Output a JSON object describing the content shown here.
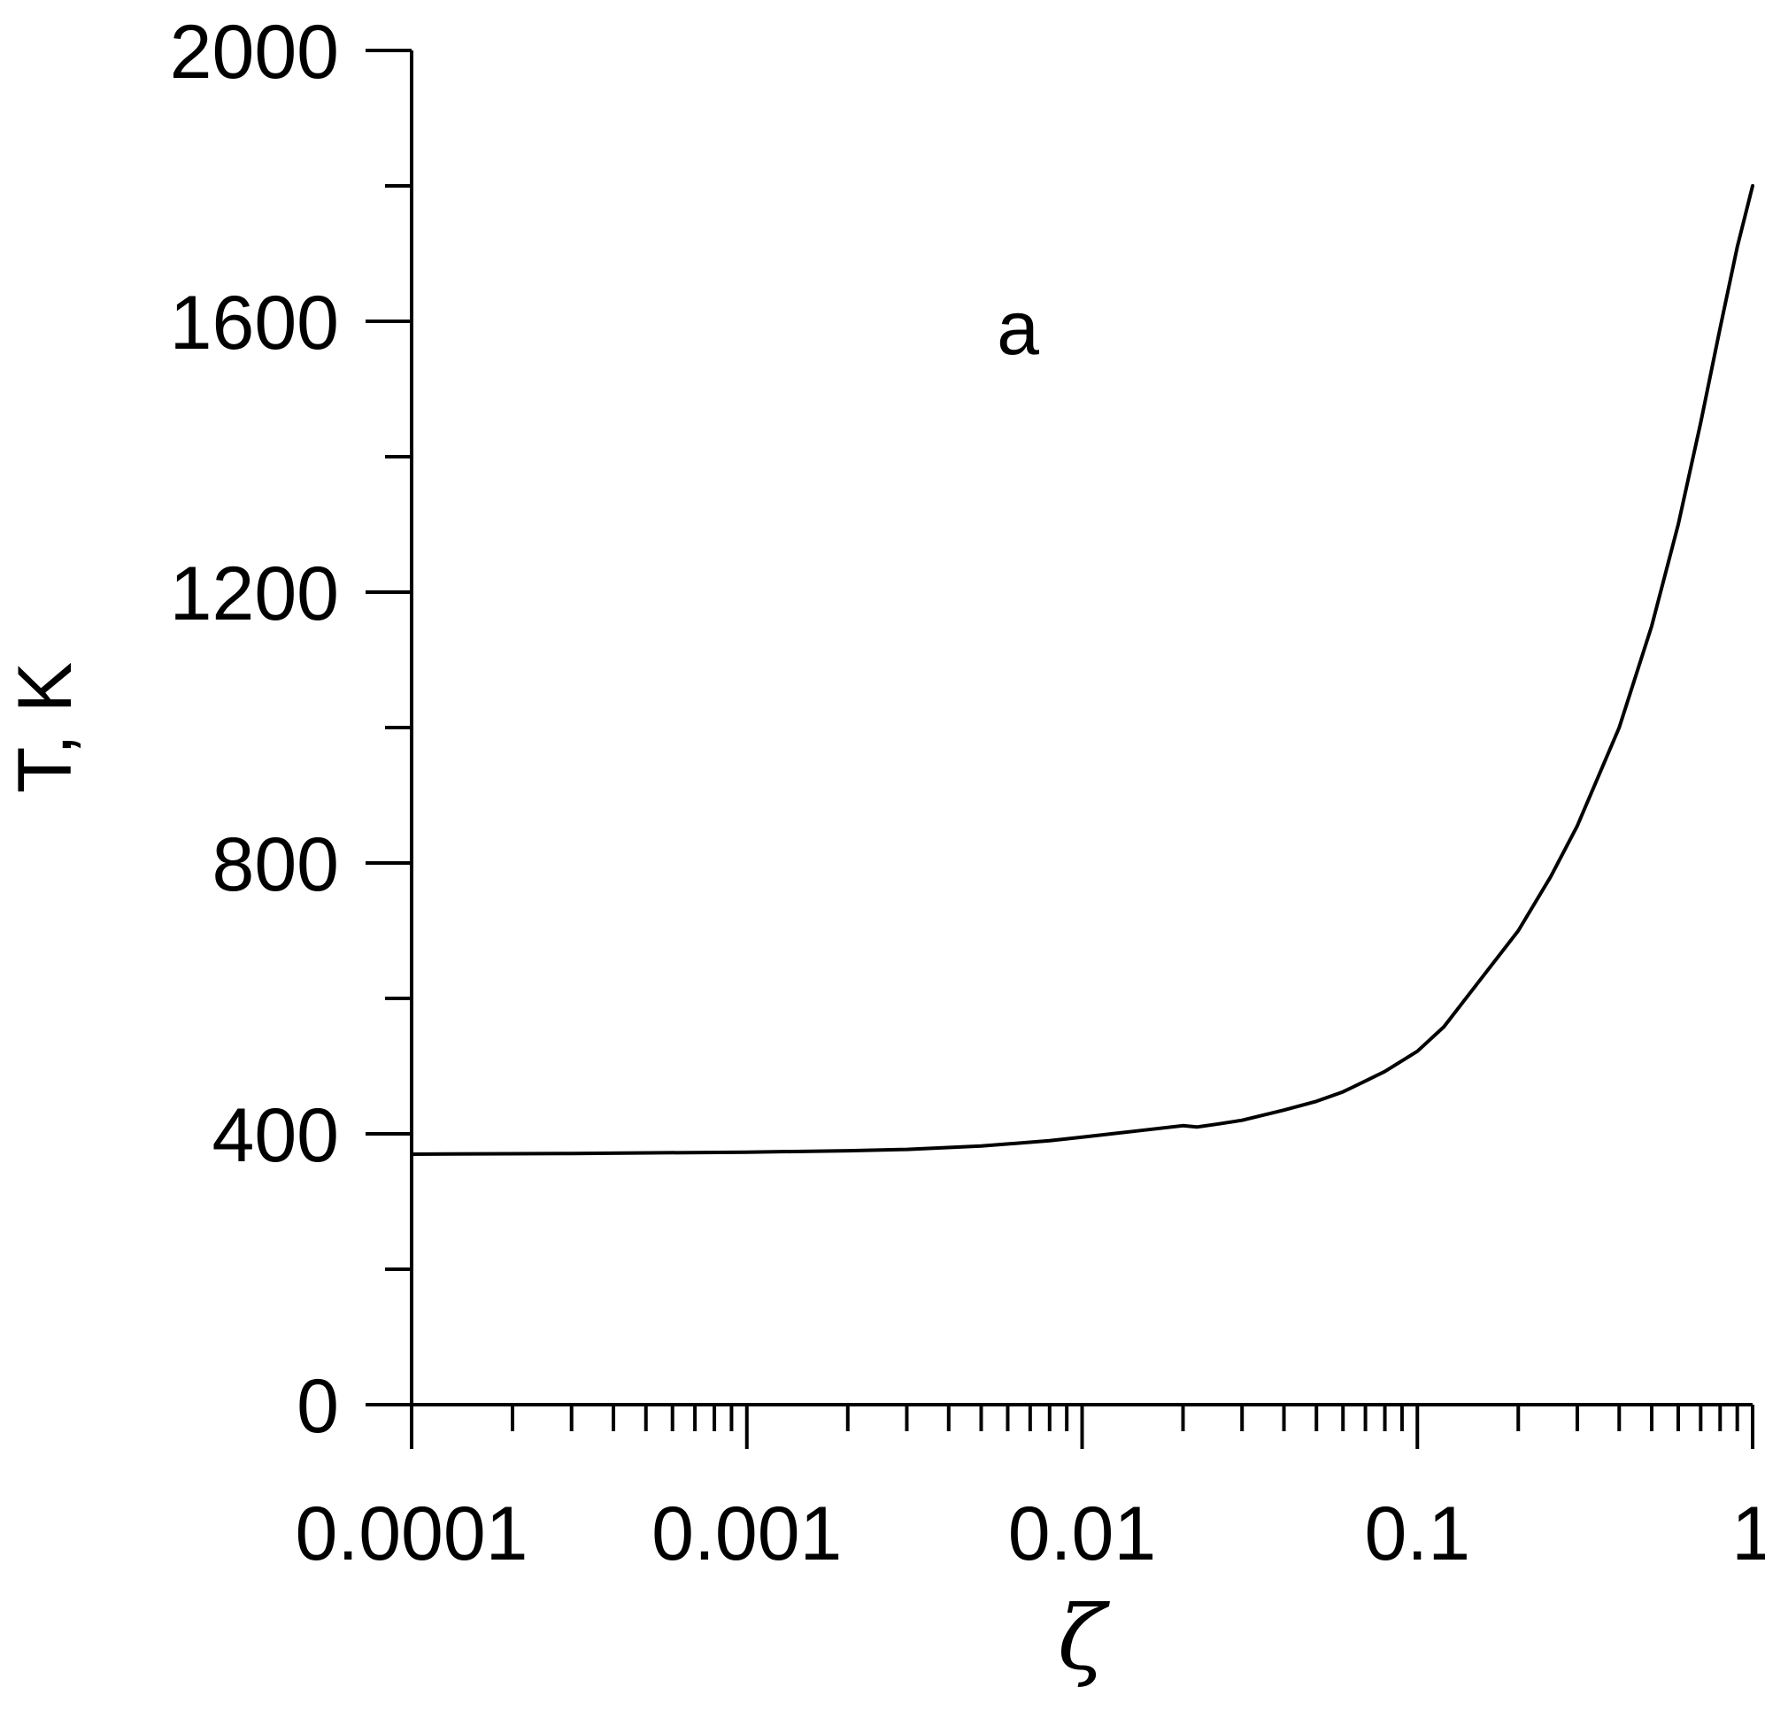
{
  "chart_data": {
    "type": "line",
    "title": "",
    "xlabel": "ζ",
    "ylabel": "T, K",
    "xscale": "log",
    "xlim": [
      0.0001,
      1
    ],
    "ylim": [
      0,
      2000
    ],
    "grid": false,
    "legend": "none",
    "annotation": "a",
    "x_ticks": [
      {
        "value": 0.0001,
        "label": "0.0001"
      },
      {
        "value": 0.001,
        "label": "0.001"
      },
      {
        "value": 0.01,
        "label": "0.01"
      },
      {
        "value": 0.1,
        "label": "0.1"
      },
      {
        "value": 1,
        "label": "1"
      }
    ],
    "y_ticks": [
      {
        "value": 0,
        "label": "0"
      },
      {
        "value": 400,
        "label": "400"
      },
      {
        "value": 800,
        "label": "800"
      },
      {
        "value": 1200,
        "label": "1200"
      },
      {
        "value": 1600,
        "label": "1600"
      },
      {
        "value": 2000,
        "label": "2000"
      }
    ],
    "y_minor_ticks": [
      200,
      600,
      1000,
      1400,
      1800
    ],
    "series": [
      {
        "x": [
          0.0001,
          0.0003,
          0.001,
          0.002,
          0.003,
          0.005,
          0.008,
          0.01,
          0.015,
          0.02,
          0.022,
          0.025,
          0.03,
          0.04,
          0.05,
          0.06,
          0.07,
          0.08,
          0.1,
          0.12,
          0.15,
          0.2,
          0.25,
          0.3,
          0.4,
          0.5,
          0.6,
          0.7,
          0.8,
          0.9,
          1.0
        ],
        "y": [
          370,
          371,
          373,
          375,
          377,
          382,
          390,
          395,
          405,
          412,
          410,
          414,
          420,
          435,
          448,
          462,
          478,
          492,
          522,
          558,
          620,
          700,
          780,
          855,
          1000,
          1150,
          1300,
          1450,
          1590,
          1710,
          1800
        ]
      }
    ]
  }
}
